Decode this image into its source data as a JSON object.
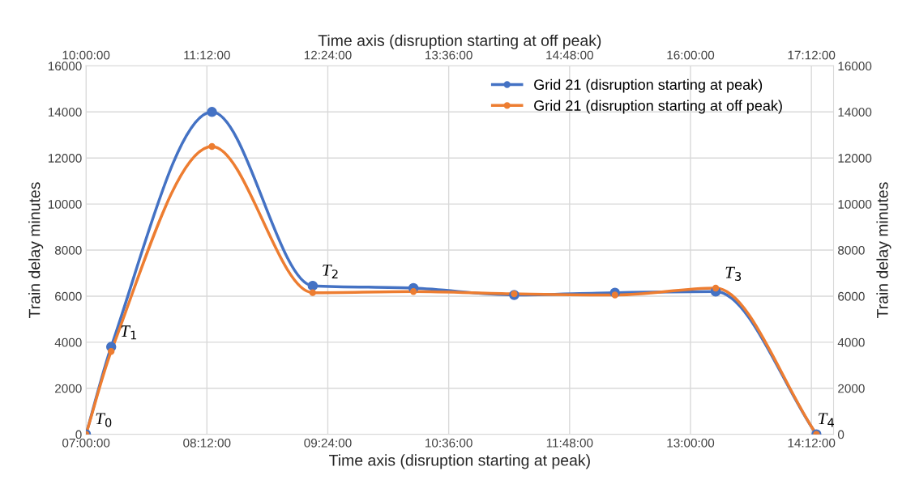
{
  "chart_data": {
    "type": "line",
    "xlabel": "Time axis (disruption starting at peak)",
    "x2label": "Time axis (disruption starting at off peak)",
    "ylabel": "Train delay minutes",
    "y2label": "Train delay minutes",
    "x": [
      7,
      7.25,
      8.25,
      9.25,
      10.25,
      11.25,
      12.25,
      13.25,
      14.25
    ],
    "series": [
      {
        "name": "Grid 21 (disruption starting at peak)",
        "color": "#4472c4",
        "values": [
          0,
          3800,
          14000,
          6450,
          6350,
          6050,
          6150,
          6200,
          0
        ]
      },
      {
        "name": "Grid 21 (disruption starting at off peak)",
        "color": "#ed7d31",
        "values": [
          0,
          3600,
          12500,
          6150,
          6200,
          6100,
          6050,
          6350,
          0
        ]
      }
    ],
    "xlim": [
      7,
      14.42
    ],
    "xticks": [
      {
        "value": 7,
        "label": "07:00:00"
      },
      {
        "value": 8.2,
        "label": "08:12:00"
      },
      {
        "value": 9.4,
        "label": "09:24:00"
      },
      {
        "value": 10.6,
        "label": "10:36:00"
      },
      {
        "value": 11.8,
        "label": "11:48:00"
      },
      {
        "value": 13,
        "label": "13:00:00"
      },
      {
        "value": 14.2,
        "label": "14:12:00"
      }
    ],
    "x2lim": [
      10,
      17.42
    ],
    "x2ticks": [
      {
        "value": 10,
        "label": "10:00:00"
      },
      {
        "value": 11.2,
        "label": "11:12:00"
      },
      {
        "value": 12.4,
        "label": "12:24:00"
      },
      {
        "value": 13.6,
        "label": "13:36:00"
      },
      {
        "value": 14.8,
        "label": "14:48:00"
      },
      {
        "value": 16,
        "label": "16:00:00"
      },
      {
        "value": 17.2,
        "label": "17:12:00"
      }
    ],
    "ylim": [
      0,
      16000
    ],
    "yticks": [
      0,
      2000,
      4000,
      6000,
      8000,
      10000,
      12000,
      14000,
      16000
    ],
    "y2lim": [
      0,
      16000
    ],
    "y2ticks": [
      0,
      2000,
      4000,
      6000,
      8000,
      10000,
      12000,
      14000,
      16000
    ],
    "annotations": [
      {
        "text": "T$_{0}$",
        "x": 7,
        "y": 0
      },
      {
        "text": "T$_{1}$",
        "x": 7.25,
        "y": 3800
      },
      {
        "text": "T$_{2}$",
        "x": 9.25,
        "y": 6450
      },
      {
        "text": "T$_{3}$",
        "x": 13.25,
        "y": 6350
      },
      {
        "text": "T$_{4}$",
        "x": 14.25,
        "y": 0
      }
    ],
    "grid": true,
    "legend": "top right",
    "marker": "circle",
    "line_style": "solid"
  }
}
